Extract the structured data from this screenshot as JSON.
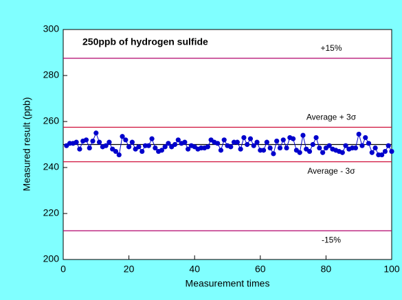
{
  "chart_data": {
    "type": "line",
    "title": "250ppb of hydrogen sulfide",
    "x_label": "Measurement times",
    "y_label": "Measured result (ppb)",
    "xlim": [
      0,
      100
    ],
    "xticks": [
      0,
      20,
      40,
      60,
      80,
      100
    ],
    "ylim": [
      200,
      300
    ],
    "yticks": [
      200,
      220,
      240,
      260,
      280,
      300
    ],
    "x": [
      1,
      2,
      3,
      4,
      5,
      6,
      7,
      8,
      9,
      10,
      11,
      12,
      13,
      14,
      15,
      16,
      17,
      18,
      19,
      20,
      21,
      22,
      23,
      24,
      25,
      26,
      27,
      28,
      29,
      30,
      31,
      32,
      33,
      34,
      35,
      36,
      37,
      38,
      39,
      40,
      41,
      42,
      43,
      44,
      45,
      46,
      47,
      48,
      49,
      50,
      51,
      52,
      53,
      54,
      55,
      56,
      57,
      58,
      59,
      60,
      61,
      62,
      63,
      64,
      65,
      66,
      67,
      68,
      69,
      70,
      71,
      72,
      73,
      74,
      75,
      76,
      77,
      78,
      79,
      80,
      81,
      82,
      83,
      84,
      85,
      86,
      87,
      88,
      89,
      90,
      91,
      92,
      93,
      94,
      95,
      96,
      97,
      98,
      99,
      100
    ],
    "series": [
      {
        "color": "#0000cc",
        "values": [
          249.5,
          250.5,
          250.5,
          251,
          248,
          251.5,
          252,
          248.5,
          251.5,
          255,
          251,
          249,
          249.5,
          251,
          248,
          247,
          245.5,
          253.5,
          252,
          249,
          251,
          248,
          249,
          247,
          249.5,
          249.5,
          252.5,
          248.5,
          247,
          247.5,
          249,
          250.5,
          249,
          250,
          252,
          250.5,
          251,
          248,
          249.5,
          249,
          248,
          248.5,
          248.5,
          249,
          252,
          251,
          250.5,
          247.5,
          252,
          249.5,
          249,
          251,
          251,
          248,
          253,
          250,
          252.5,
          249.5,
          251,
          247.5,
          247.5,
          251,
          248.5,
          246,
          251.5,
          248.5,
          252,
          248.5,
          253,
          252.5,
          247.5,
          246.5,
          254,
          248,
          247,
          250,
          253,
          248.5,
          246.5,
          248.5,
          249.5,
          248,
          247.5,
          247,
          246.5,
          249.5,
          248,
          248.5,
          248.5,
          254.5,
          249.5,
          253,
          250.5,
          246.5,
          248.5,
          245.5,
          245.5,
          247,
          249.5,
          247
        ]
      }
    ],
    "reference_lines": [
      {
        "value": 287.5,
        "label": "+15%",
        "color": "#b0006a"
      },
      {
        "value": 257.5,
        "label": "Average + 3σ",
        "color": "#d0103a"
      },
      {
        "value": 250,
        "color": "#000000"
      },
      {
        "value": 242.5,
        "label": "Average - 3σ",
        "color": "#d0103a"
      },
      {
        "value": 212.5,
        "label": "-15%",
        "color": "#b0006a"
      }
    ]
  }
}
